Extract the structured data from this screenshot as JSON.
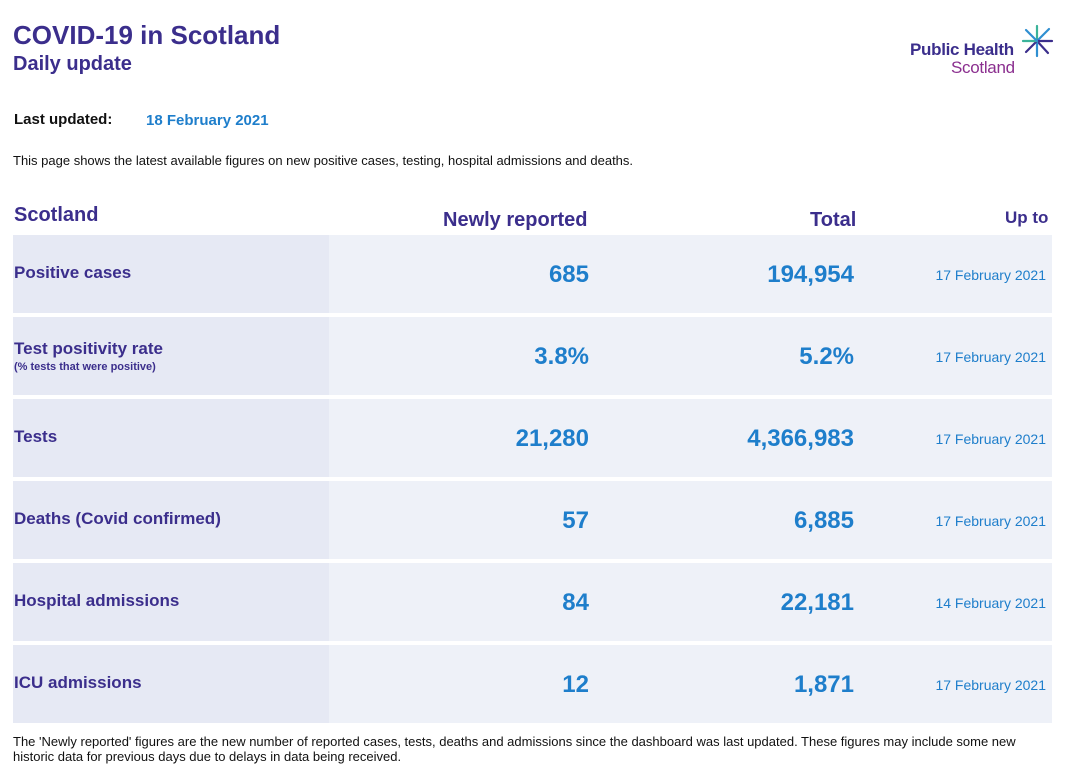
{
  "header": {
    "title": "COVID-19 in Scotland",
    "subtitle": "Daily update"
  },
  "logo": {
    "line1": "Public Health",
    "line2": "Scotland",
    "icon": "star-burst-icon"
  },
  "last_updated": {
    "label": "Last updated:",
    "value": "18 February 2021"
  },
  "intro": "This page shows the latest available figures on new positive cases, testing, hospital admissions and deaths.",
  "table": {
    "headers": {
      "region": "Scotland",
      "newly_reported": "Newly reported",
      "total": "Total",
      "up_to": "Up to"
    },
    "rows": [
      {
        "label": "Positive cases",
        "sublabel": "",
        "new": "685",
        "total": "194,954",
        "date": "17 February 2021"
      },
      {
        "label": "Test positivity rate",
        "sublabel": "(% tests that were positive)",
        "new": "3.8%",
        "total": "5.2%",
        "date": "17 February 2021"
      },
      {
        "label": "Tests",
        "sublabel": "",
        "new": "21,280",
        "total": "4,366,983",
        "date": "17 February 2021"
      },
      {
        "label": "Deaths (Covid confirmed)",
        "sublabel": "",
        "new": "57",
        "total": "6,885",
        "date": "17 February 2021"
      },
      {
        "label": "Hospital admissions",
        "sublabel": "",
        "new": "84",
        "total": "22,181",
        "date": "14 February 2021"
      },
      {
        "label": "ICU admissions",
        "sublabel": "",
        "new": "12",
        "total": "1,871",
        "date": "17 February 2021"
      }
    ]
  },
  "footnote": "The 'Newly reported' figures are the new number of reported cases, tests, deaths and admissions since the dashboard was last updated. These figures may include some new historic data for previous days due to delays in data being received.",
  "colors": {
    "heading": "#3b2e8c",
    "value": "#1e7ecb",
    "row_bg": "#eef1f8"
  }
}
